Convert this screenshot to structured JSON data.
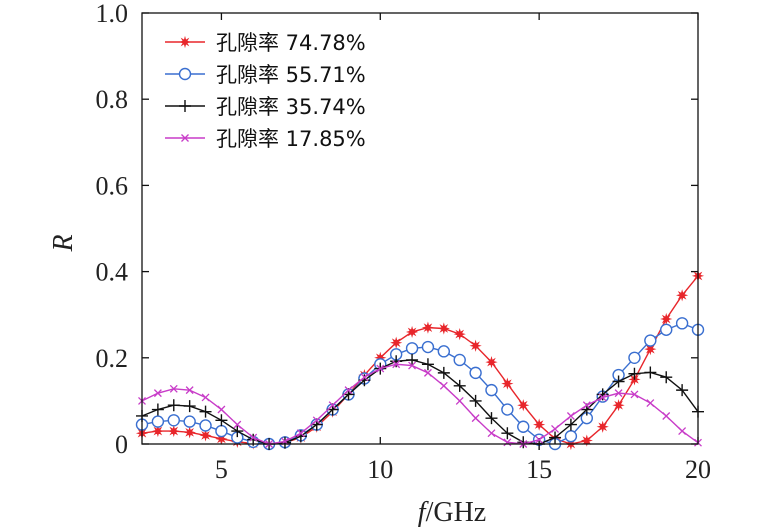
{
  "chart_data": {
    "type": "line",
    "title": "",
    "xlabel": {
      "symbol": "f",
      "unit": "/GHz"
    },
    "ylabel": "R",
    "xlim": [
      2.5,
      20
    ],
    "ylim": [
      0,
      1.0
    ],
    "xticks": [
      5,
      10,
      15,
      20
    ],
    "xtick_labels": [
      "5",
      "10",
      "15",
      "20"
    ],
    "yticks": [
      0,
      0.2,
      0.4,
      0.6,
      0.8,
      1.0
    ],
    "ytick_labels": [
      "0",
      "0.2",
      "0.4",
      "0.6",
      "0.8",
      "1.0"
    ],
    "grid": false,
    "legend_position": "top-left",
    "x": [
      2.5,
      3.0,
      3.5,
      4.0,
      4.5,
      5.0,
      5.5,
      6.0,
      6.5,
      7.0,
      7.5,
      8.0,
      8.5,
      9.0,
      9.5,
      10.0,
      10.5,
      11.0,
      11.5,
      12.0,
      12.5,
      13.0,
      13.5,
      14.0,
      14.5,
      15.0,
      15.5,
      16.0,
      16.5,
      17.0,
      17.5,
      18.0,
      18.5,
      19.0,
      19.5,
      20.0
    ],
    "series": [
      {
        "name": "孔隙率 74.78%",
        "color": "#e8262b",
        "marker": "star",
        "values": [
          0.025,
          0.03,
          0.03,
          0.027,
          0.02,
          0.012,
          0.005,
          0.001,
          0.0,
          0.003,
          0.015,
          0.04,
          0.075,
          0.115,
          0.16,
          0.2,
          0.235,
          0.26,
          0.27,
          0.268,
          0.255,
          0.228,
          0.19,
          0.14,
          0.09,
          0.045,
          0.012,
          0.0,
          0.008,
          0.04,
          0.09,
          0.15,
          0.22,
          0.29,
          0.345,
          0.39
        ]
      },
      {
        "name": "孔隙率 55.71%",
        "color": "#3a6fd0",
        "marker": "circle",
        "values": [
          0.045,
          0.052,
          0.055,
          0.052,
          0.043,
          0.03,
          0.015,
          0.005,
          0.0,
          0.004,
          0.02,
          0.045,
          0.08,
          0.115,
          0.152,
          0.185,
          0.208,
          0.222,
          0.225,
          0.215,
          0.195,
          0.165,
          0.125,
          0.08,
          0.04,
          0.01,
          0.0,
          0.018,
          0.06,
          0.11,
          0.16,
          0.2,
          0.24,
          0.265,
          0.28,
          0.265
        ]
      },
      {
        "name": "孔隙率 35.74%",
        "color": "#111111",
        "marker": "plus",
        "values": [
          0.065,
          0.08,
          0.09,
          0.088,
          0.075,
          0.055,
          0.03,
          0.01,
          0.0,
          0.003,
          0.018,
          0.045,
          0.08,
          0.115,
          0.148,
          0.175,
          0.192,
          0.195,
          0.185,
          0.165,
          0.135,
          0.1,
          0.06,
          0.025,
          0.004,
          0.0,
          0.015,
          0.045,
          0.08,
          0.115,
          0.145,
          0.163,
          0.166,
          0.155,
          0.125,
          0.075
        ]
      },
      {
        "name": "孔隙率 17.85%",
        "color": "#c83cc8",
        "marker": "x",
        "values": [
          0.1,
          0.118,
          0.128,
          0.125,
          0.108,
          0.08,
          0.045,
          0.015,
          0.0,
          0.006,
          0.025,
          0.055,
          0.09,
          0.125,
          0.155,
          0.175,
          0.185,
          0.182,
          0.165,
          0.135,
          0.1,
          0.06,
          0.025,
          0.004,
          0.0,
          0.01,
          0.035,
          0.065,
          0.09,
          0.108,
          0.118,
          0.115,
          0.095,
          0.065,
          0.03,
          0.003
        ]
      }
    ]
  }
}
